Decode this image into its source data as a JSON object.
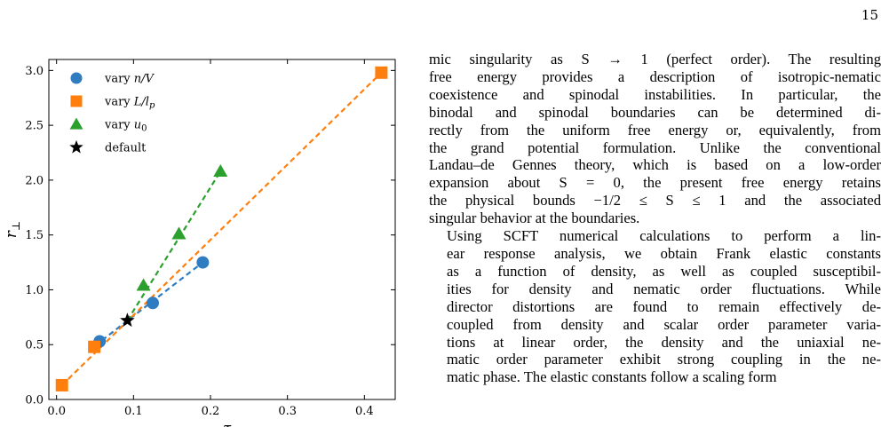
{
  "page": {
    "number": "15"
  },
  "figure": {
    "chart_data": {
      "type": "scatter",
      "xlabel": "ξ_Q",
      "ylabel": "r_⊥",
      "xlim": [
        -0.01,
        0.44
      ],
      "ylim": [
        0.0,
        3.1
      ],
      "x_ticks": [
        0.0,
        0.1,
        0.2,
        0.3,
        0.4
      ],
      "x_tick_labels": [
        "0.0",
        "0.1",
        "0.2",
        "0.3",
        "0.4"
      ],
      "y_ticks": [
        0.0,
        0.5,
        1.0,
        1.5,
        2.0,
        2.5,
        3.0
      ],
      "y_tick_labels": [
        "0.0",
        "0.5",
        "1.0",
        "1.5",
        "2.0",
        "2.5",
        "3.0"
      ],
      "grid": false,
      "legend_position": "top-left",
      "series": [
        {
          "name": "vary n/V",
          "marker": "circle",
          "color": "#2f7cc0",
          "points": [
            [
              0.056,
              0.53
            ],
            [
              0.125,
              0.88
            ],
            [
              0.19,
              1.25
            ]
          ],
          "fit_line": [
            [
              0.05,
              0.49
            ],
            [
              0.19,
              1.25
            ]
          ]
        },
        {
          "name": "vary L/l_p",
          "marker": "square",
          "color": "#ff7f0e",
          "points": [
            [
              0.007,
              0.13
            ],
            [
              0.049,
              0.48
            ],
            [
              0.422,
              2.98
            ]
          ],
          "fit_line": [
            [
              0.007,
              0.13
            ],
            [
              0.422,
              2.98
            ]
          ]
        },
        {
          "name": "vary u_0",
          "marker": "triangle",
          "color": "#2ca02c",
          "points": [
            [
              0.113,
              1.04
            ],
            [
              0.159,
              1.51
            ],
            [
              0.213,
              2.08
            ]
          ],
          "fit_line": [
            [
              0.092,
              0.72
            ],
            [
              0.213,
              2.08
            ]
          ]
        },
        {
          "name": "default",
          "marker": "star",
          "color": "#000000",
          "points": [
            [
              0.092,
              0.72
            ]
          ]
        }
      ]
    },
    "legend": [
      {
        "label_prefix": "vary ",
        "label_math": "n/V"
      },
      {
        "label_prefix": "vary ",
        "label_math": "L/l_p"
      },
      {
        "label_prefix": "vary ",
        "label_math": "u_0"
      },
      {
        "label_prefix": "",
        "label_math": "default"
      }
    ]
  },
  "text": {
    "lines_p1": [
      "mic singularity as S → 1 (perfect order). The resulting",
      "free energy provides a description of isotropic-nematic",
      "coexistence and spinodal instabilities. In particular, the",
      "binodal and spinodal boundaries can be determined di-",
      "rectly from the uniform free energy or, equivalently, from",
      "the grand potential formulation. Unlike the conventional",
      "Landau–de Gennes theory, which is based on a low-order",
      "expansion about S = 0, the present free energy retains",
      "the physical bounds −1/2 ≤ S ≤ 1 and the associated",
      "singular behavior at the boundaries."
    ],
    "lines_p2": [
      "Using SCFT numerical calculations to perform a lin-",
      "ear response analysis, we obtain Frank elastic constants",
      "as a function of density, as well as coupled susceptibil-",
      "ities for density and nematic order fluctuations. While",
      "director distortions are found to remain effectively de-",
      "coupled from density and scalar order parameter varia-",
      "tions at linear order, the density and the uniaxial ne-",
      "matic order parameter exhibit strong coupling in the ne-",
      "matic phase. The elastic constants follow a scaling form"
    ]
  }
}
